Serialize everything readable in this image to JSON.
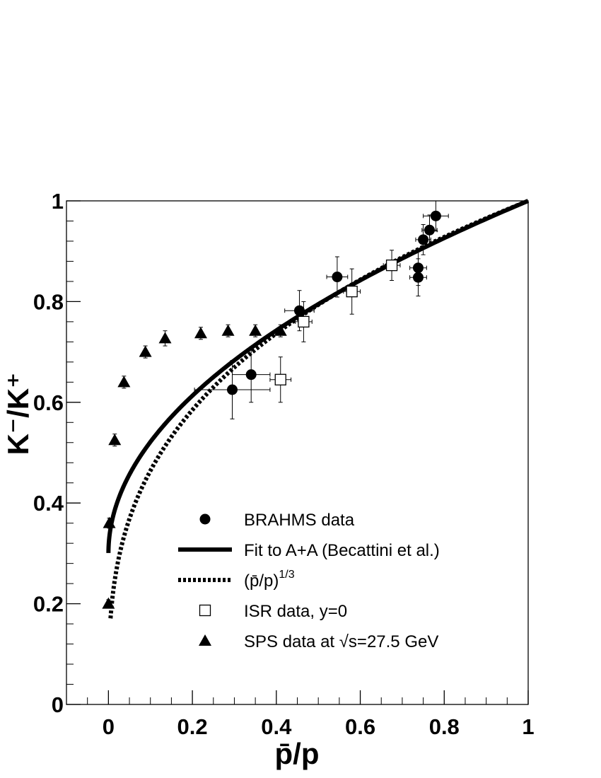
{
  "chart_data": {
    "type": "scatter",
    "title": "",
    "xlabel": "p̄/p",
    "ylabel": "K⁻/K⁺",
    "xlim": [
      -0.1,
      1.0
    ],
    "ylim": [
      0.0,
      1.0
    ],
    "xticks": [
      0,
      0.2,
      0.4,
      0.6,
      0.8,
      1
    ],
    "xtick_labels": [
      "0",
      "0.2",
      "0.4",
      "0.6",
      "0.8",
      "1"
    ],
    "yticks": [
      0,
      0.2,
      0.4,
      0.6,
      0.8,
      1
    ],
    "ytick_labels": [
      "0",
      "0.2",
      "0.4",
      "0.6",
      "0.8",
      "1"
    ],
    "grid": false,
    "legend_position": "lower-right",
    "series": [
      {
        "name": "BRAHMS data",
        "marker": "filled-circle",
        "points": [
          {
            "x": 0.295,
            "y": 0.625,
            "xerr": 0.09,
            "yerr": 0.058
          },
          {
            "x": 0.34,
            "y": 0.655,
            "xerr": 0.045,
            "yerr": 0.055
          },
          {
            "x": 0.455,
            "y": 0.782,
            "xerr": 0.035,
            "yerr": 0.04
          },
          {
            "x": 0.545,
            "y": 0.849,
            "xerr": 0.025,
            "yerr": 0.04
          },
          {
            "x": 0.738,
            "y": 0.867,
            "xerr": 0.02,
            "yerr": 0.035
          },
          {
            "x": 0.738,
            "y": 0.848,
            "xerr": 0.02,
            "yerr": 0.037
          },
          {
            "x": 0.75,
            "y": 0.923,
            "xerr": 0.018,
            "yerr": 0.03
          },
          {
            "x": 0.765,
            "y": 0.942,
            "xerr": 0.018,
            "yerr": 0.03
          },
          {
            "x": 0.78,
            "y": 0.97,
            "xerr": 0.03,
            "yerr": 0.03
          }
        ]
      },
      {
        "name": "Fit to A+A (Becattini et al.)",
        "line": "solid",
        "formula": "fit"
      },
      {
        "name": "(p̄/p)^1/3",
        "line": "dotted",
        "formula": "cube-root"
      },
      {
        "name": "ISR data, y=0",
        "marker": "open-square",
        "points": [
          {
            "x": 0.41,
            "y": 0.645,
            "xerr": 0.025,
            "yerr": 0.045
          },
          {
            "x": 0.465,
            "y": 0.76,
            "xerr": 0.02,
            "yerr": 0.04
          },
          {
            "x": 0.58,
            "y": 0.82,
            "xerr": 0.02,
            "yerr": 0.045
          },
          {
            "x": 0.675,
            "y": 0.872,
            "xerr": 0.02,
            "yerr": 0.03
          }
        ]
      },
      {
        "name": "SPS data at √s=27.5 GeV",
        "marker": "filled-triangle",
        "points": [
          {
            "x": 0.0,
            "y": 0.2,
            "yerr": 0.008
          },
          {
            "x": 0.002,
            "y": 0.36,
            "yerr": 0.01
          },
          {
            "x": 0.015,
            "y": 0.525,
            "yerr": 0.012
          },
          {
            "x": 0.037,
            "y": 0.64,
            "yerr": 0.012
          },
          {
            "x": 0.088,
            "y": 0.7,
            "yerr": 0.012
          },
          {
            "x": 0.135,
            "y": 0.727,
            "yerr": 0.015
          },
          {
            "x": 0.22,
            "y": 0.737,
            "yerr": 0.012
          },
          {
            "x": 0.285,
            "y": 0.742,
            "yerr": 0.012
          },
          {
            "x": 0.35,
            "y": 0.742,
            "yerr": 0.012
          },
          {
            "x": 0.41,
            "y": 0.742,
            "yerr": 0.012
          }
        ]
      }
    ],
    "legend": {
      "entries": [
        {
          "label": "BRAHMS data",
          "symbol": "filled-circle"
        },
        {
          "label": "Fit to A+A (Becattini et al.)",
          "symbol": "solid-line"
        },
        {
          "label": "(p̄/p)",
          "superscript": "1/3",
          "symbol": "dotted-line"
        },
        {
          "label": "ISR data, y=0",
          "symbol": "open-square"
        },
        {
          "label": "SPS data at √s=27.5 GeV",
          "symbol": "filled-triangle"
        }
      ]
    }
  }
}
